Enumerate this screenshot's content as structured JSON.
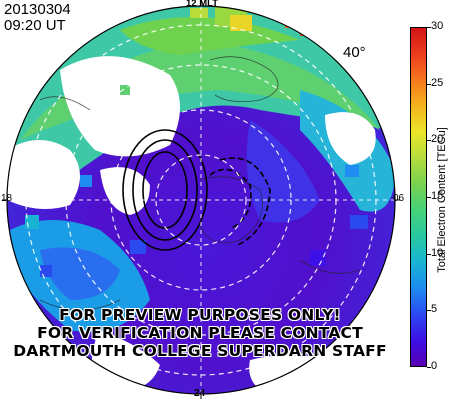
{
  "header": {
    "date": "20130304",
    "time": "09:20 UT"
  },
  "map": {
    "mlt_labels": {
      "top": "12 MLT",
      "left": "18",
      "right": "06",
      "bottom": "24"
    },
    "latitude_label": "40°",
    "watermark": [
      "FOR PREVIEW PURPOSES ONLY!",
      "FOR VERIFICATION PLEASE CONTACT",
      "DARTMOUTH COLLEGE SUPERDARN STAFF"
    ]
  },
  "colorbar": {
    "title": "Total Electron Content [TECu]",
    "ticks": [
      "30",
      "25",
      "20",
      "15",
      "10",
      "5",
      "0"
    ],
    "min": 0,
    "max": 30,
    "colors": [
      "#5a00b4",
      "#3c10e6",
      "#2a4af0",
      "#1e8cf0",
      "#18b4d2",
      "#28c8a0",
      "#46d278",
      "#78d250",
      "#b4dc3c",
      "#ebe628",
      "#f5b41e",
      "#f5781e",
      "#eb3c1e",
      "#d21414"
    ]
  }
}
